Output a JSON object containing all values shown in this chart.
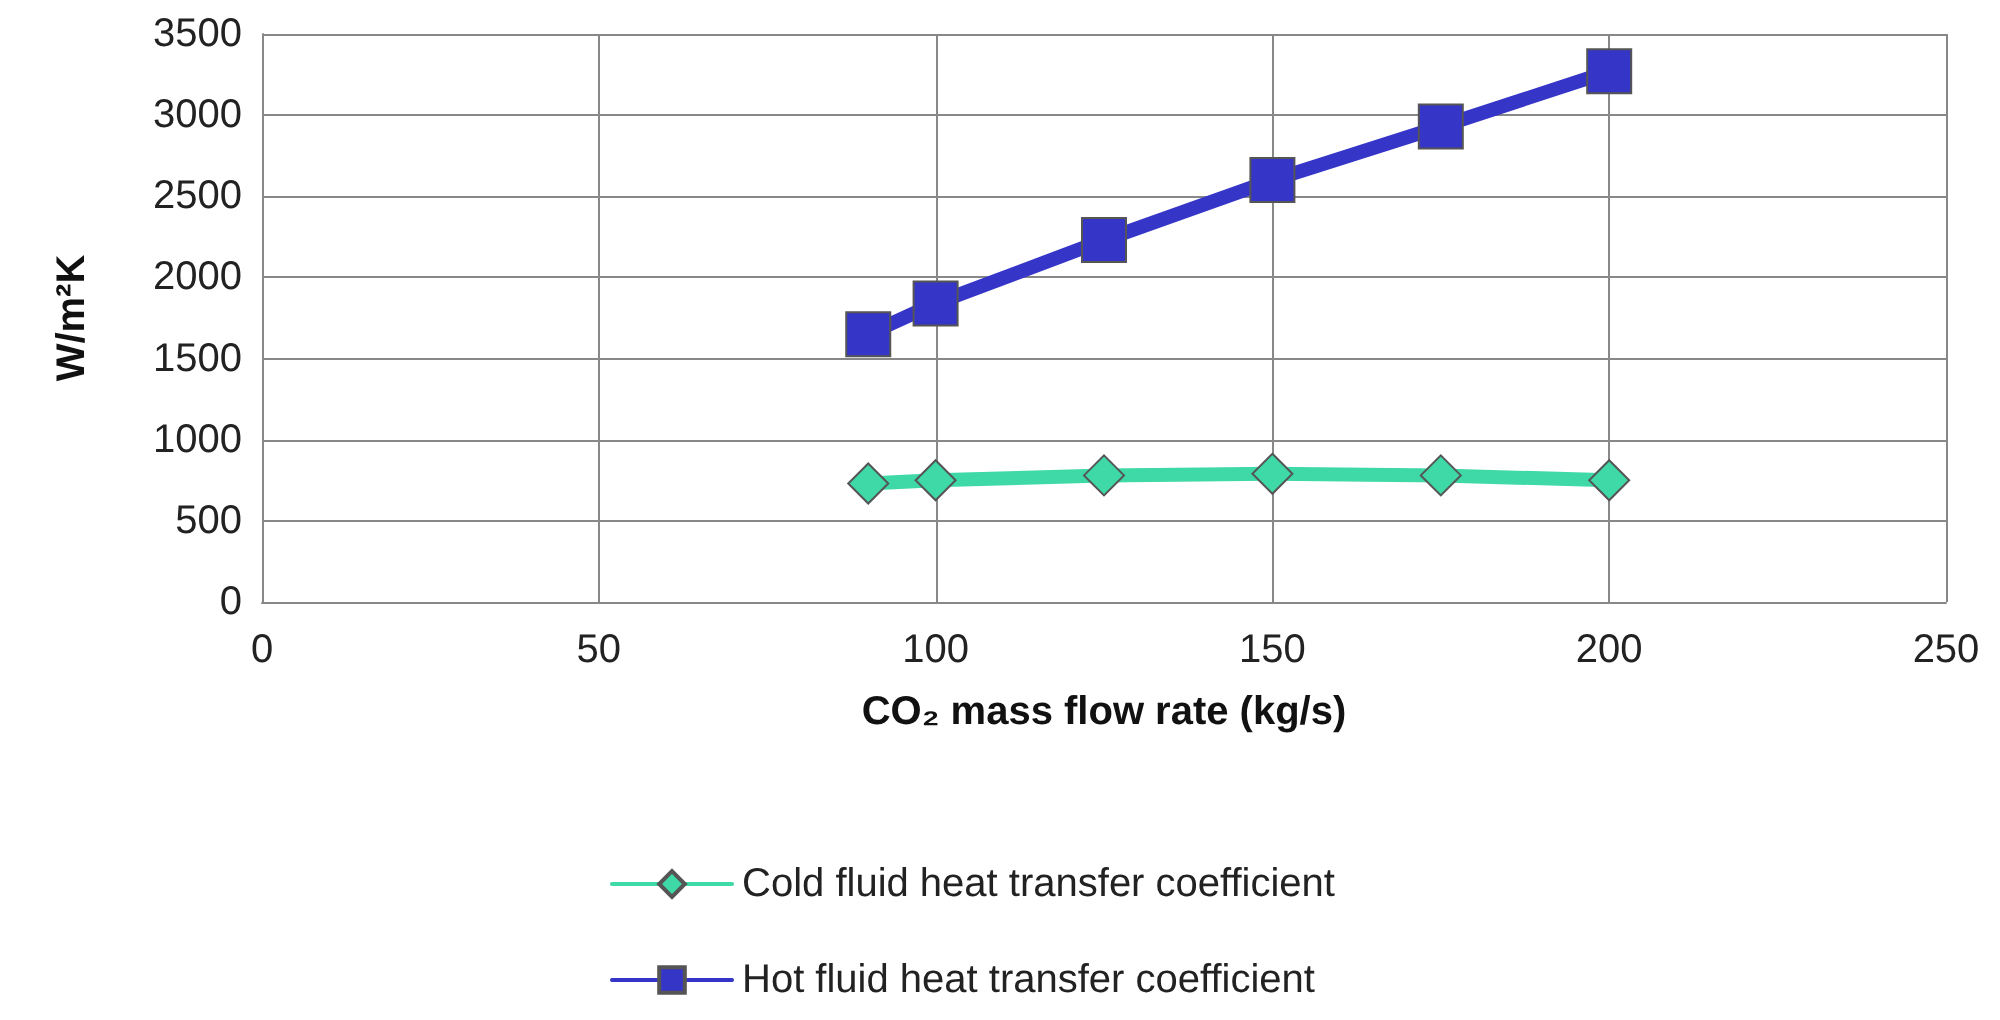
{
  "chart_data": {
    "type": "line",
    "xlabel": "CO₂ mass flow rate (kg/s)",
    "ylabel": "W/m²K",
    "x": [
      90,
      100,
      125,
      150,
      175,
      200
    ],
    "series": [
      {
        "name": "Cold fluid heat transfer coefficient",
        "color": "#3ed9a6",
        "marker": "diamond",
        "values": [
          730,
          750,
          780,
          790,
          780,
          750
        ]
      },
      {
        "name": "Hot fluid heat transfer coefficient",
        "color": "#3535c8",
        "marker": "square",
        "values": [
          1650,
          1840,
          2230,
          2600,
          2930,
          3270
        ]
      }
    ],
    "xlim": [
      0,
      250
    ],
    "xticks": [
      0,
      50,
      100,
      150,
      200,
      250
    ],
    "ylim": [
      0,
      3500
    ],
    "yticks": [
      0,
      500,
      1000,
      1500,
      2000,
      2500,
      3000,
      3500
    ],
    "grid": true,
    "legend": "bottom",
    "line_style": "solid"
  }
}
